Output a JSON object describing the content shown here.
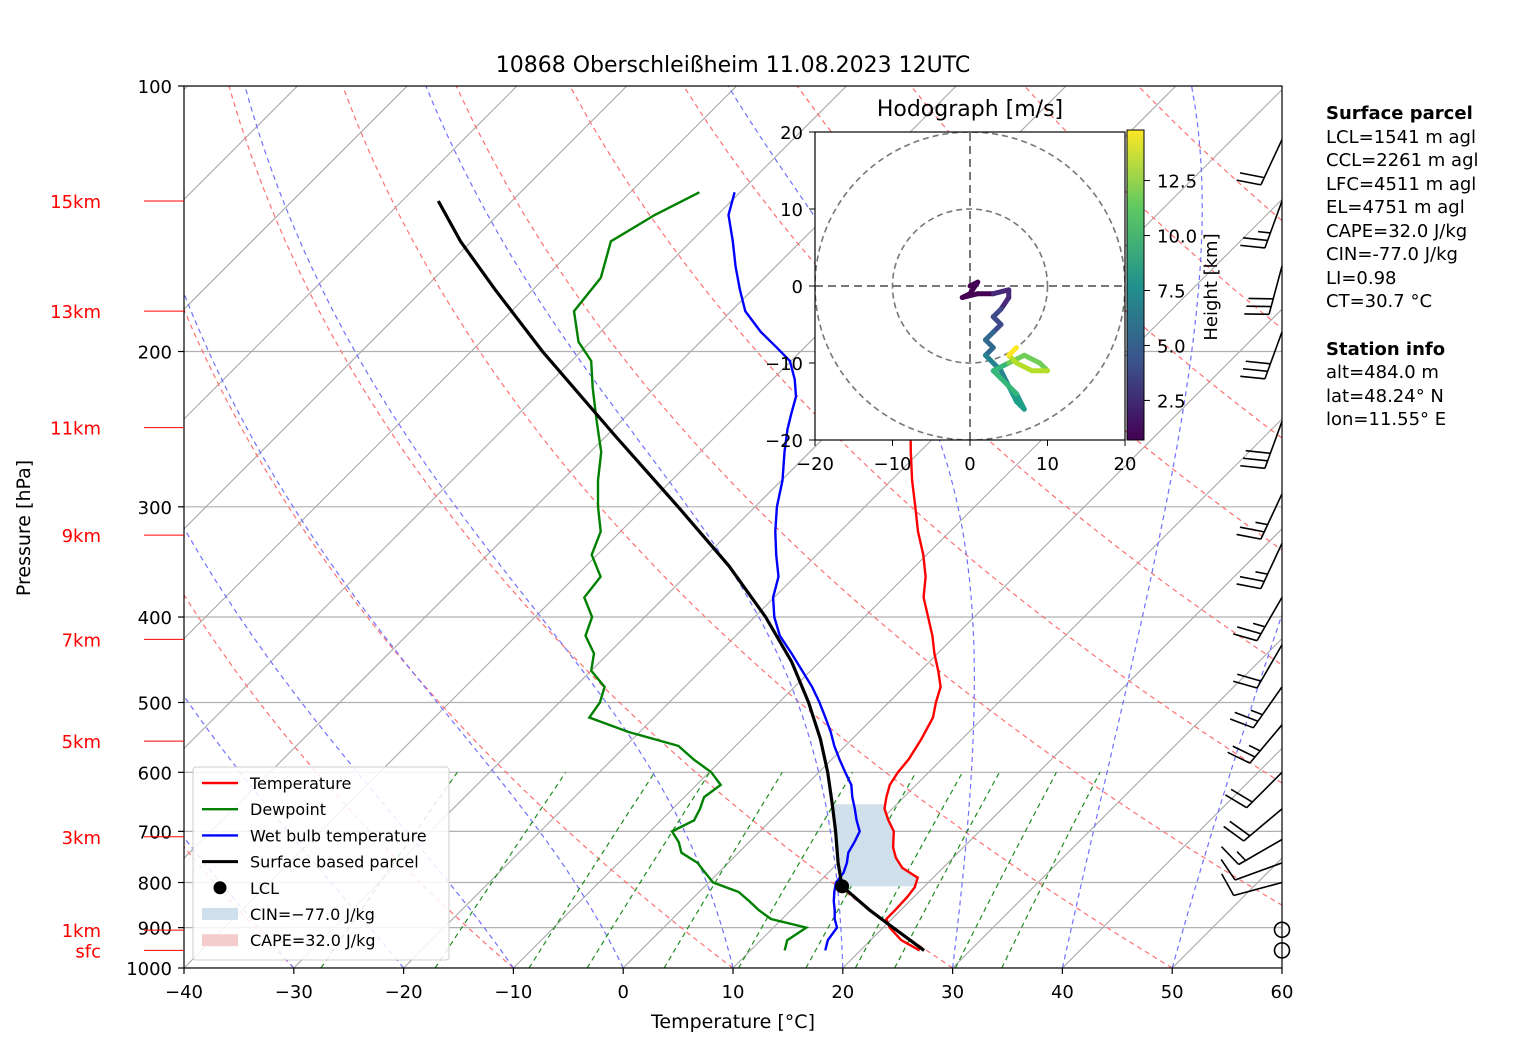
{
  "chart_data": {
    "type": "skew-t",
    "title": "10868 Oberschleißheim 11.08.2023 12UTC",
    "xlabel": "Temperature [°C]",
    "ylabel": "Pressure [hPa]",
    "xlim": [
      -40,
      60
    ],
    "ylim": [
      1000,
      100
    ],
    "x_ticks": [
      "−40",
      "−30",
      "−20",
      "−10",
      "0",
      "10",
      "20",
      "30",
      "40",
      "50",
      "60"
    ],
    "y_ticks": [
      "100",
      "200",
      "300",
      "400",
      "500",
      "600",
      "700",
      "800",
      "900",
      "1000"
    ],
    "height_labels": [
      {
        "label": "sfc",
        "p": 955
      },
      {
        "label": "1km",
        "p": 906
      },
      {
        "label": "3km",
        "p": 710
      },
      {
        "label": "5km",
        "p": 553
      },
      {
        "label": "7km",
        "p": 424
      },
      {
        "label": "9km",
        "p": 323
      },
      {
        "label": "11km",
        "p": 244
      },
      {
        "label": "13km",
        "p": 180
      },
      {
        "label": "15km",
        "p": 135
      }
    ],
    "series": [
      {
        "name": "Temperature",
        "color": "#ff0000",
        "points": [
          [
            955,
            25.4
          ],
          [
            930,
            22.8
          ],
          [
            900,
            20.6
          ],
          [
            880,
            19.5
          ],
          [
            860,
            19.5
          ],
          [
            830,
            19.4
          ],
          [
            810,
            19.2
          ],
          [
            790,
            18.6
          ],
          [
            770,
            16.3
          ],
          [
            750,
            14.8
          ],
          [
            730,
            13.6
          ],
          [
            700,
            12.2
          ],
          [
            680,
            10.7
          ],
          [
            660,
            9.3
          ],
          [
            640,
            8.4
          ],
          [
            620,
            7.6
          ],
          [
            600,
            7.2
          ],
          [
            580,
            7.0
          ],
          [
            550,
            6.3
          ],
          [
            520,
            5.4
          ],
          [
            500,
            4.3
          ],
          [
            480,
            3.3
          ],
          [
            460,
            1.6
          ],
          [
            440,
            -0.3
          ],
          [
            420,
            -2.1
          ],
          [
            400,
            -4.2
          ],
          [
            380,
            -6.4
          ],
          [
            360,
            -8.1
          ],
          [
            340,
            -10.3
          ],
          [
            320,
            -12.9
          ],
          [
            300,
            -15.4
          ],
          [
            280,
            -18.1
          ],
          [
            260,
            -20.8
          ],
          [
            245,
            -22.9
          ],
          [
            235,
            -24.3
          ],
          [
            225,
            -25.6
          ],
          [
            215,
            -27.1
          ],
          [
            205,
            -28.8
          ],
          [
            198,
            -31.4
          ],
          [
            190,
            -34.6
          ],
          [
            180,
            -37.4
          ],
          [
            170,
            -39.6
          ],
          [
            160,
            -42.3
          ],
          [
            150,
            -45.2
          ],
          [
            140,
            -48.3
          ],
          [
            132,
            -49.9
          ]
        ]
      },
      {
        "name": "Dewpoint",
        "color": "#008000",
        "points": [
          [
            955,
            13.1
          ],
          [
            930,
            12.4
          ],
          [
            900,
            13.0
          ],
          [
            880,
            9.0
          ],
          [
            860,
            7.1
          ],
          [
            840,
            5.4
          ],
          [
            820,
            3.6
          ],
          [
            800,
            0.4
          ],
          [
            780,
            -1.2
          ],
          [
            760,
            -2.8
          ],
          [
            740,
            -5.2
          ],
          [
            720,
            -6.4
          ],
          [
            700,
            -8.0
          ],
          [
            680,
            -7.0
          ],
          [
            660,
            -7.5
          ],
          [
            640,
            -8.2
          ],
          [
            620,
            -7.8
          ],
          [
            600,
            -9.8
          ],
          [
            580,
            -12.6
          ],
          [
            560,
            -15.2
          ],
          [
            540,
            -21.0
          ],
          [
            520,
            -25.9
          ],
          [
            500,
            -26.3
          ],
          [
            480,
            -27.3
          ],
          [
            460,
            -30.0
          ],
          [
            440,
            -31.3
          ],
          [
            420,
            -33.7
          ],
          [
            400,
            -34.8
          ],
          [
            380,
            -37.3
          ],
          [
            360,
            -37.7
          ],
          [
            340,
            -40.5
          ],
          [
            320,
            -41.8
          ],
          [
            300,
            -44.3
          ],
          [
            280,
            -46.7
          ],
          [
            260,
            -49.0
          ],
          [
            240,
            -52.2
          ],
          [
            220,
            -55.6
          ],
          [
            205,
            -58.2
          ],
          [
            195,
            -61.1
          ],
          [
            180,
            -64.3
          ],
          [
            165,
            -64.9
          ],
          [
            150,
            -67.3
          ],
          [
            140,
            -65.7
          ],
          [
            132,
            -63.7
          ]
        ]
      },
      {
        "name": "Wet bulb temperature",
        "color": "#0000ff",
        "points": [
          [
            955,
            16.8
          ],
          [
            930,
            16.1
          ],
          [
            900,
            15.8
          ],
          [
            880,
            14.8
          ],
          [
            860,
            14.0
          ],
          [
            840,
            13.1
          ],
          [
            820,
            12.3
          ],
          [
            800,
            11.6
          ],
          [
            780,
            11.4
          ],
          [
            760,
            10.8
          ],
          [
            740,
            10.0
          ],
          [
            720,
            9.6
          ],
          [
            700,
            9.1
          ],
          [
            680,
            7.8
          ],
          [
            660,
            6.6
          ],
          [
            640,
            5.3
          ],
          [
            620,
            4.1
          ],
          [
            600,
            2.4
          ],
          [
            580,
            0.7
          ],
          [
            560,
            -1.0
          ],
          [
            540,
            -2.6
          ],
          [
            520,
            -4.4
          ],
          [
            500,
            -6.3
          ],
          [
            480,
            -8.4
          ],
          [
            460,
            -10.8
          ],
          [
            440,
            -13.3
          ],
          [
            420,
            -16.0
          ],
          [
            400,
            -18.2
          ],
          [
            380,
            -20.1
          ],
          [
            360,
            -21.5
          ],
          [
            340,
            -23.7
          ],
          [
            320,
            -25.9
          ],
          [
            300,
            -28.0
          ],
          [
            280,
            -29.9
          ],
          [
            260,
            -32.3
          ],
          [
            245,
            -34.1
          ],
          [
            235,
            -35.2
          ],
          [
            225,
            -36.3
          ],
          [
            215,
            -38.0
          ],
          [
            205,
            -40.1
          ],
          [
            198,
            -42.5
          ],
          [
            190,
            -45.4
          ],
          [
            180,
            -48.7
          ],
          [
            170,
            -51.2
          ],
          [
            160,
            -53.7
          ],
          [
            150,
            -56.2
          ],
          [
            140,
            -59.0
          ],
          [
            132,
            -60.5
          ]
        ]
      },
      {
        "name": "Surface based parcel",
        "color": "#000000",
        "points": [
          [
            955,
            25.8
          ],
          [
            900,
            20.9
          ],
          [
            860,
            17.2
          ],
          [
            808,
            12.5
          ],
          [
            760,
            10.0
          ],
          [
            700,
            6.9
          ],
          [
            650,
            4.0
          ],
          [
            600,
            0.8
          ],
          [
            550,
            -2.9
          ],
          [
            500,
            -7.3
          ],
          [
            450,
            -12.5
          ],
          [
            400,
            -19.0
          ],
          [
            350,
            -27.0
          ],
          [
            300,
            -37.0
          ],
          [
            250,
            -49.0
          ],
          [
            200,
            -63.5
          ],
          [
            170,
            -73.5
          ],
          [
            150,
            -81.0
          ],
          [
            135,
            -86.7
          ]
        ]
      }
    ],
    "lcl": {
      "label": "LCL",
      "p": 808,
      "t": 12.5
    },
    "shading": [
      {
        "label": "CIN=−77.0 J/kg",
        "color": "#cfe0ec"
      },
      {
        "label": "CAPE=32.0 J/kg",
        "color": "#f4cccc"
      }
    ],
    "legend": {
      "placement": "bottom-left",
      "items": [
        "Temperature",
        "Dewpoint",
        "Wet bulb temperature",
        "Surface based parcel",
        "LCL",
        "CIN=−77.0 J/kg",
        "CAPE=32.0 J/kg"
      ]
    },
    "wind_barbs": [
      {
        "p": 955,
        "speed_kt": 0
      },
      {
        "p": 905,
        "speed_kt": 0
      },
      {
        "p": 800,
        "speed_kt": 10,
        "dir": 255
      },
      {
        "p": 760,
        "speed_kt": 10,
        "dir": 250
      },
      {
        "p": 715,
        "speed_kt": 15,
        "dir": 240
      },
      {
        "p": 660,
        "speed_kt": 20,
        "dir": 230
      },
      {
        "p": 600,
        "speed_kt": 20,
        "dir": 225
      },
      {
        "p": 530,
        "speed_kt": 25,
        "dir": 220
      },
      {
        "p": 480,
        "speed_kt": 25,
        "dir": 215
      },
      {
        "p": 430,
        "speed_kt": 20,
        "dir": 210
      },
      {
        "p": 380,
        "speed_kt": 25,
        "dir": 210
      },
      {
        "p": 330,
        "speed_kt": 25,
        "dir": 205
      },
      {
        "p": 290,
        "speed_kt": 25,
        "dir": 205
      },
      {
        "p": 240,
        "speed_kt": 30,
        "dir": 200
      },
      {
        "p": 190,
        "speed_kt": 30,
        "dir": 200
      },
      {
        "p": 160,
        "speed_kt": 30,
        "dir": 195
      },
      {
        "p": 135,
        "speed_kt": 25,
        "dir": 200
      },
      {
        "p": 115,
        "speed_kt": 20,
        "dir": 205
      }
    ],
    "hodograph": {
      "title": "Hodograph [m/s]",
      "xlim": [
        -20,
        20
      ],
      "ylim": [
        -20,
        20
      ],
      "x_ticks": [
        "−20",
        "−10",
        "0",
        "10",
        "20"
      ],
      "y_ticks": [
        "20",
        "10",
        "0",
        "−10",
        "−20"
      ],
      "rings_ms": [
        10,
        20
      ],
      "colorbar_label": "Height [km]",
      "colorbar_ticks": [
        "2.5",
        "5.0",
        "7.5",
        "10.0",
        "12.5"
      ],
      "points": [
        [
          0,
          0,
          0.5
        ],
        [
          1,
          0.5,
          0.7
        ],
        [
          0,
          -1,
          0.9
        ],
        [
          -1,
          -1.5,
          1.1
        ],
        [
          1,
          -1,
          1.4
        ],
        [
          3,
          -1,
          1.8
        ],
        [
          5,
          -0.5,
          2.2
        ],
        [
          5,
          -1.5,
          2.6
        ],
        [
          4,
          -3,
          3.0
        ],
        [
          3,
          -4,
          3.6
        ],
        [
          4,
          -5,
          4.2
        ],
        [
          3,
          -6,
          4.8
        ],
        [
          2,
          -7,
          5.3
        ],
        [
          3,
          -8,
          5.8
        ],
        [
          2,
          -9,
          6.3
        ],
        [
          3,
          -10,
          6.8
        ],
        [
          4,
          -11,
          7.3
        ],
        [
          5,
          -13,
          7.8
        ],
        [
          6,
          -15,
          8.3
        ],
        [
          7,
          -16,
          8.8
        ],
        [
          6,
          -14,
          9.3
        ],
        [
          4,
          -12,
          9.8
        ],
        [
          3,
          -11,
          10.3
        ],
        [
          5,
          -10,
          10.8
        ],
        [
          7,
          -9,
          11.3
        ],
        [
          9,
          -10,
          11.8
        ],
        [
          10,
          -11,
          12.3
        ],
        [
          8,
          -11,
          12.8
        ],
        [
          6,
          -10,
          13.3
        ],
        [
          5,
          -9,
          13.8
        ],
        [
          6,
          -8,
          14.3
        ]
      ]
    }
  },
  "side_panel": {
    "surface_title": "Surface parcel",
    "lines": [
      "LCL=1541 m agl",
      "CCL=2261 m agl",
      "LFC=4511 m agl",
      "EL=4751 m agl",
      "CAPE=32.0 J/kg",
      "CIN=-77.0 J/kg",
      "LI=0.98",
      "CT=30.7 °C"
    ],
    "station_title": "Station info",
    "station_lines": [
      "alt=484.0 m",
      "lat=48.24° N",
      "lon=11.55° E"
    ]
  }
}
